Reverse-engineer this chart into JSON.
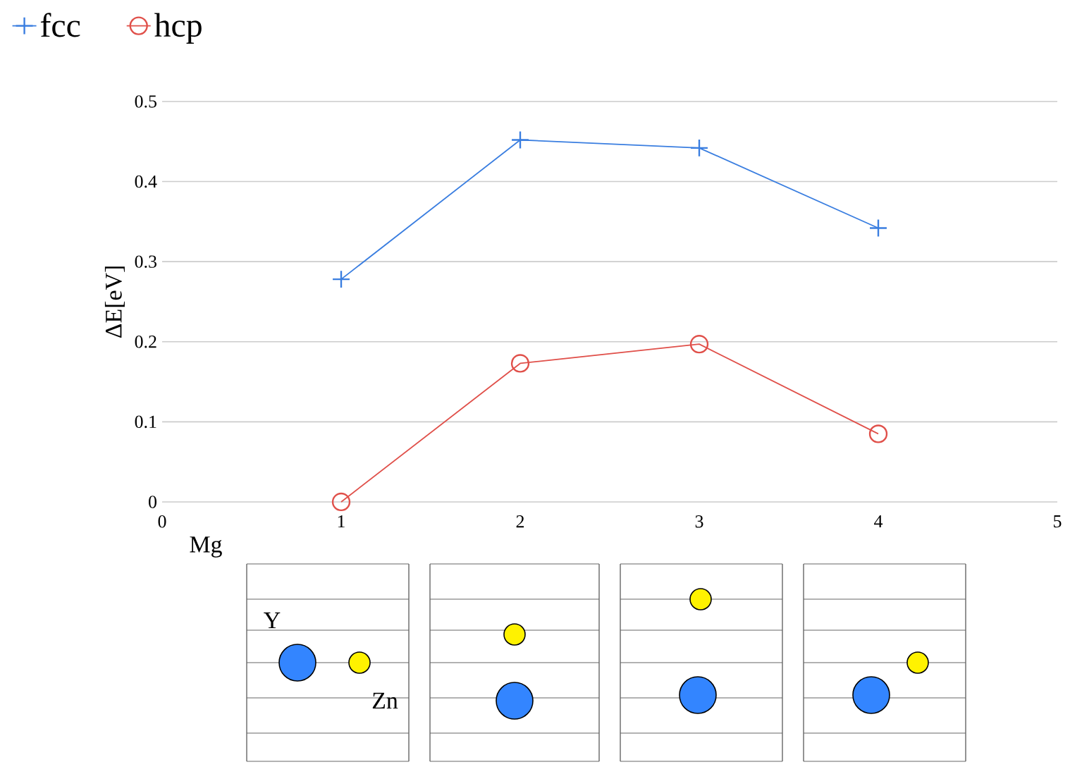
{
  "chart_data": {
    "type": "line",
    "xlabel": null,
    "ylabel": "ΔE[eV]",
    "x": [
      1,
      2,
      3,
      4
    ],
    "series": [
      {
        "name": "fcc",
        "color": "#3a7ee0",
        "marker": "cross",
        "values": [
          0.278,
          0.452,
          0.442,
          0.342
        ]
      },
      {
        "name": "hcp",
        "color": "#e0504a",
        "marker": "circle",
        "values": [
          0,
          0.173,
          0.197,
          0.085
        ]
      }
    ],
    "xlim": [
      0,
      5
    ],
    "xticks": [
      0,
      1,
      2,
      3,
      4,
      5
    ],
    "ylim": [
      0,
      0.5
    ],
    "yticks": [
      0,
      0.1,
      0.2,
      0.3,
      0.4,
      0.5
    ],
    "grid": "y",
    "legend": "top left",
    "annotations": [
      "Mg",
      "Y",
      "Zn"
    ]
  }
}
